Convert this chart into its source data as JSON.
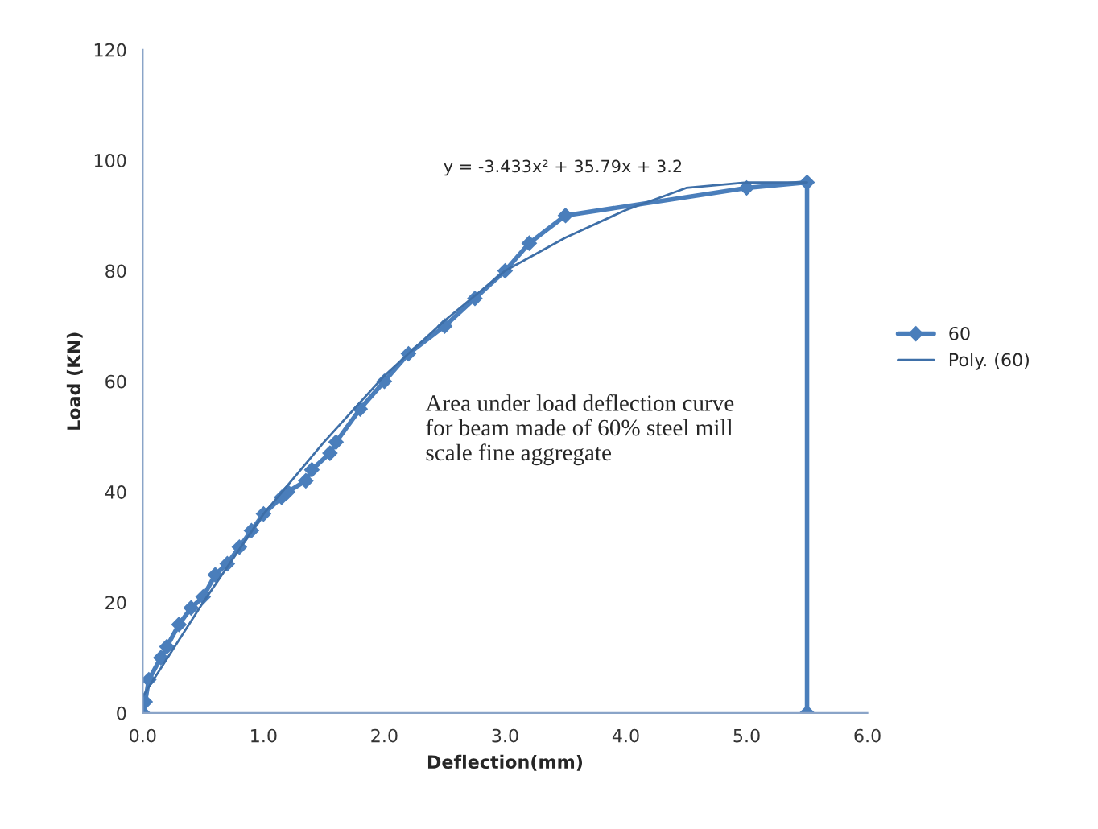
{
  "chart_data": {
    "type": "line",
    "xlabel": "Deflection(mm)",
    "ylabel": "Load (KN)",
    "xlim": [
      0,
      6
    ],
    "xticks": [
      {
        "value": 0,
        "label": "0.0"
      },
      {
        "value": 1,
        "label": "1.0"
      },
      {
        "value": 2,
        "label": "2.0"
      },
      {
        "value": 3,
        "label": "3.0"
      },
      {
        "value": 4,
        "label": "4.0"
      },
      {
        "value": 5,
        "label": "5.0"
      },
      {
        "value": 6,
        "label": "6.0"
      }
    ],
    "ylim": [
      0,
      120
    ],
    "yticks": [
      0,
      20,
      40,
      60,
      80,
      100,
      120
    ],
    "grid": false,
    "legend": "right",
    "series": [
      {
        "name": "60",
        "color": "#4a7ebb",
        "marker": "diamond",
        "x": [
          0,
          0.02,
          0.05,
          0.15,
          0.2,
          0.3,
          0.4,
          0.5,
          0.6,
          0.7,
          0.8,
          0.9,
          1.0,
          1.15,
          1.2,
          1.35,
          1.4,
          1.55,
          1.6,
          1.8,
          2.0,
          2.2,
          2.5,
          2.75,
          3.0,
          3.2,
          3.5,
          5.0,
          5.5,
          5.5
        ],
        "values": [
          0,
          2,
          6,
          10,
          12,
          16,
          19,
          21,
          25,
          27,
          30,
          33,
          36,
          39,
          40,
          42,
          44,
          47,
          49,
          55,
          60,
          65,
          70,
          75,
          80,
          85,
          90,
          95,
          96,
          0
        ]
      },
      {
        "name": "Poly. (60)",
        "color": "#3e6fa8",
        "marker": "none",
        "x": [
          0,
          0.5,
          1,
          1.5,
          2,
          2.5,
          3,
          3.5,
          4,
          4.5,
          5,
          5.5
        ],
        "values": [
          3,
          20,
          36,
          49,
          61,
          71,
          80,
          86,
          91,
          95,
          96,
          96
        ]
      }
    ],
    "annotations": [
      "y = -3.433x² + 35.79x + 3.2",
      "Area under load deflection curve\nfor beam made of 60% steel mill\nscale fine aggregate"
    ]
  }
}
